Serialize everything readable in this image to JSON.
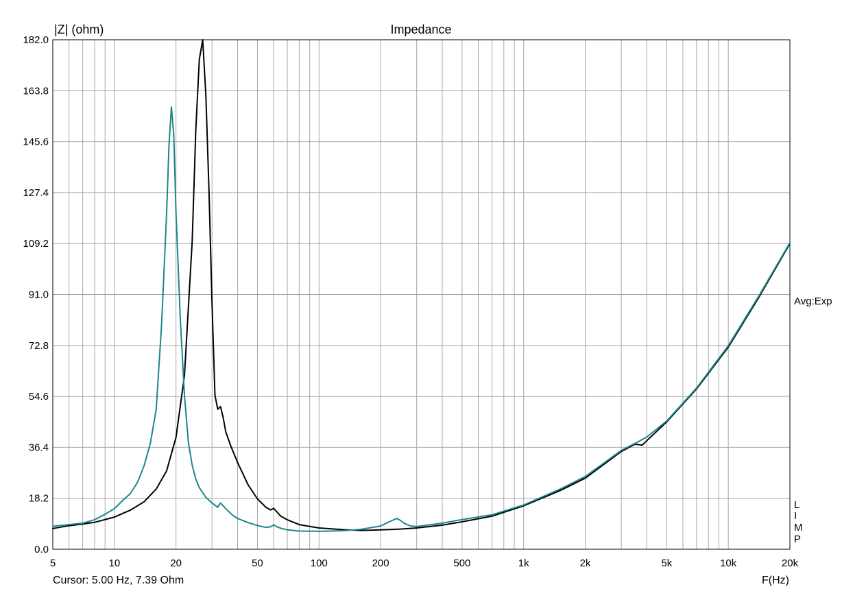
{
  "chart_data": {
    "type": "line",
    "title": "Impedance",
    "ylabel": "|Z| (ohm)",
    "xlabel": "F(Hz)",
    "xscale": "log",
    "xlim": [
      5,
      20000
    ],
    "ylim": [
      0,
      182
    ],
    "grid": true,
    "y_ticks": [
      "0.0",
      "18.2",
      "36.4",
      "54.6",
      "72.8",
      "91.0",
      "109.2",
      "127.4",
      "145.6",
      "163.8",
      "182.0"
    ],
    "y_tick_values": [
      0,
      18.2,
      36.4,
      54.6,
      72.8,
      91.0,
      109.2,
      127.4,
      145.6,
      163.8,
      182.0
    ],
    "x_ticks": [
      "5",
      "10",
      "20",
      "50",
      "100",
      "200",
      "500",
      "1k",
      "2k",
      "5k",
      "10k",
      "20k"
    ],
    "x_tick_values": [
      5,
      10,
      20,
      50,
      100,
      200,
      500,
      1000,
      2000,
      5000,
      10000,
      20000
    ],
    "right_annotation": "Avg:Exp",
    "right_letters": [
      "L",
      "I",
      "M",
      "P"
    ],
    "cursor_text": "Cursor: 5.00 Hz, 7.39 Ohm",
    "series": [
      {
        "color": "#000000",
        "x": [
          5,
          6,
          7,
          8,
          10,
          12,
          14,
          16,
          18,
          20,
          22,
          24,
          25,
          26,
          27,
          28,
          29,
          30,
          31,
          32,
          33,
          34,
          35,
          37,
          40,
          45,
          50,
          55,
          58,
          60,
          62,
          65,
          70,
          80,
          100,
          130,
          160,
          200,
          250,
          300,
          400,
          500,
          700,
          1000,
          1500,
          2000,
          3000,
          3500,
          3800,
          4000,
          5000,
          7000,
          10000,
          14000,
          20000
        ],
        "y": [
          7.4,
          8.4,
          9.0,
          9.6,
          11.5,
          14.0,
          17.0,
          21.5,
          28,
          40,
          62,
          110,
          150,
          175,
          182,
          162,
          128,
          88,
          55,
          50,
          51,
          47,
          42,
          37,
          31,
          23,
          18,
          15,
          14.0,
          14.6,
          13.5,
          11.8,
          10.5,
          8.8,
          7.6,
          7.0,
          6.7,
          6.9,
          7.2,
          7.6,
          8.6,
          9.8,
          11.8,
          15.5,
          20.9,
          25.4,
          34.9,
          37.5,
          37.2,
          38.8,
          45.5,
          57.3,
          72.2,
          89.6,
          109.2
        ]
      },
      {
        "color": "#19868a",
        "x": [
          5,
          6,
          7,
          8,
          9,
          10,
          11,
          12,
          13,
          14,
          15,
          16,
          17,
          18,
          18.5,
          19,
          19.5,
          20,
          21,
          22,
          23,
          24,
          25,
          26,
          28,
          30,
          32,
          33,
          34,
          35,
          38,
          40,
          45,
          50,
          55,
          58,
          60,
          62,
          65,
          70,
          80,
          100,
          130,
          160,
          200,
          220,
          240,
          250,
          260,
          280,
          300,
          400,
          500,
          700,
          1000,
          1500,
          2000,
          3000,
          3500,
          4000,
          5000,
          7000,
          10000,
          14000,
          20000
        ],
        "y": [
          8.2,
          8.8,
          9.3,
          10.5,
          12.5,
          14.5,
          17.5,
          20,
          24,
          30,
          38,
          50,
          80,
          120,
          145,
          158,
          148,
          120,
          82,
          55,
          38,
          30,
          25,
          22,
          18.5,
          16.5,
          15.0,
          16.5,
          15.5,
          14.5,
          12,
          11,
          9.5,
          8.5,
          7.8,
          8.0,
          8.7,
          8.1,
          7.5,
          6.9,
          6.5,
          6.4,
          6.6,
          7.1,
          8.3,
          9.8,
          11.0,
          10.3,
          9.3,
          8.3,
          8.1,
          9.3,
          10.6,
          12.3,
          15.8,
          21.4,
          26.0,
          35.3,
          37.8,
          40.1,
          45.8,
          57.6,
          72.7,
          90.1,
          109.5
        ]
      }
    ]
  }
}
